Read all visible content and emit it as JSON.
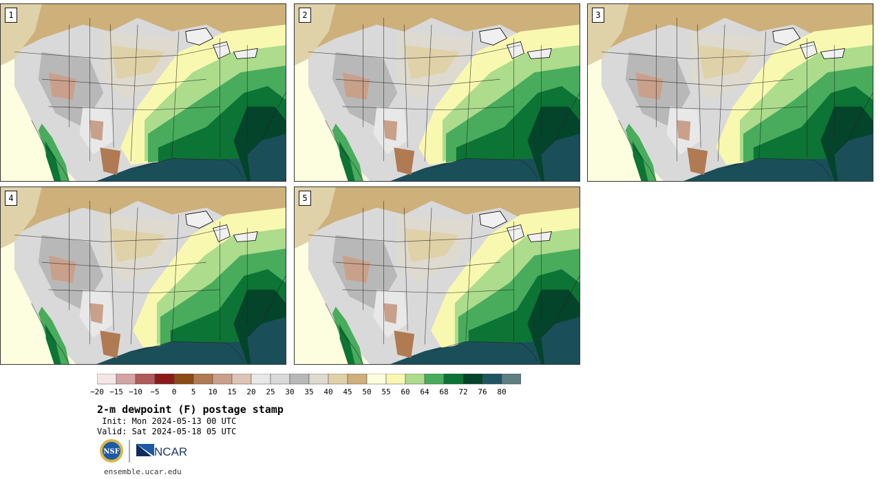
{
  "panels": [
    {
      "label": "1",
      "variant": 0
    },
    {
      "label": "2",
      "variant": 1
    },
    {
      "label": "3",
      "variant": 2
    },
    {
      "label": "4",
      "variant": 3
    },
    {
      "label": "5",
      "variant": 4
    }
  ],
  "colorbar": {
    "colors": [
      "#f5e6e6",
      "#d4a3a3",
      "#b05a5a",
      "#8c1a1a",
      "#8c4a14",
      "#b07a52",
      "#c9a08a",
      "#ddc4b4",
      "#e8e8e8",
      "#d9d9d9",
      "#b8b8b8",
      "#dedad0",
      "#e0d2a8",
      "#cdb07a",
      "#fdfde0",
      "#f8f8b0",
      "#acdc8c",
      "#48ac5c",
      "#0c7434",
      "#04442a",
      "#205460",
      "#5e7f82"
    ],
    "ticks": [
      "−20",
      "−15",
      "−10",
      "−5",
      "0",
      "5",
      "10",
      "15",
      "20",
      "25",
      "30",
      "35",
      "40",
      "45",
      "50",
      "55",
      "60",
      "64",
      "68",
      "72",
      "76",
      "80"
    ]
  },
  "title": "2-m dewpoint (F) postage stamp",
  "init_line": " Init: Mon 2024-05-13 00 UTC",
  "valid_line": "Valid: Sat 2024-05-18 05 UTC",
  "logos": {
    "nsf": "NSF",
    "ncar": "NCAR"
  },
  "website": "ensemble.ucar.edu"
}
